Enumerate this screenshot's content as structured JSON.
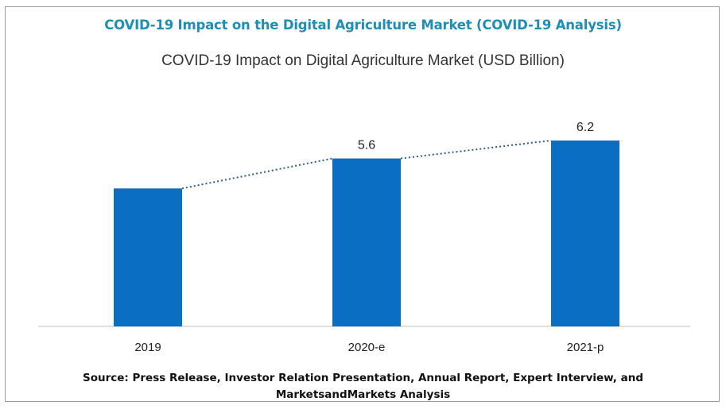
{
  "header": {
    "title": "COVID-19 Impact on the Digital Agriculture Market (COVID-19 Analysis)"
  },
  "source_line1": "Source: Press Release, Investor Relation Presentation, Annual Report, Expert Interview, and",
  "source_line2": "MarketsandMarkets Analysis",
  "colors": {
    "bar": "#0a6fc2",
    "header": "#1d8fb7",
    "trend": "#2a5d8f"
  },
  "chart_data": {
    "type": "bar",
    "title": "COVID-19 Impact on Digital Agriculture Market (USD Billion)",
    "categories": [
      "2019",
      "2020-e",
      "2021-p"
    ],
    "values": [
      4.6,
      5.6,
      6.2
    ],
    "data_labels": [
      "",
      "5.6",
      "6.2"
    ],
    "ylim": [
      0,
      6.7
    ],
    "grid": false,
    "legend": "none",
    "trend_line": "dotted"
  }
}
